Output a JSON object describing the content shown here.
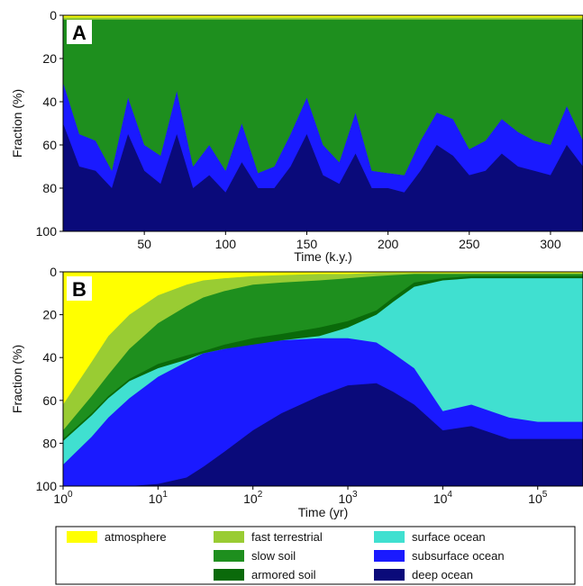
{
  "colors": {
    "atmosphere": "#ffff00",
    "fast_terrestrial": "#99cc33",
    "slow_soil": "#1e8f1e",
    "armored_soil": "#0a6a0a",
    "surface_ocean": "#40e0d0",
    "subsurface_ocean": "#1a1aff",
    "deep_ocean": "#0a0a7a"
  },
  "legend": {
    "items": [
      {
        "key": "atmosphere",
        "label": "atmosphere"
      },
      {
        "key": "fast_terrestrial",
        "label": "fast terrestrial"
      },
      {
        "key": "surface_ocean",
        "label": "surface ocean"
      },
      {
        "key": "slow_soil",
        "label": "slow soil"
      },
      {
        "key": "subsurface_ocean",
        "label": "subsurface ocean"
      },
      {
        "key": "armored_soil",
        "label": "armored soil"
      },
      {
        "key": "deep_ocean",
        "label": "deep ocean"
      }
    ]
  },
  "chart_data": [
    {
      "panel": "A",
      "type": "area",
      "stacked": true,
      "xlabel": "Time (k.y.)",
      "ylabel": "Fraction (%)",
      "xlim": [
        0,
        320
      ],
      "ylim": [
        100,
        0
      ],
      "y_inverted": true,
      "xticks": [
        50,
        100,
        150,
        200,
        250,
        300
      ],
      "yticks": [
        0,
        20,
        40,
        60,
        80,
        100
      ],
      "x": [
        0,
        10,
        20,
        30,
        40,
        50,
        60,
        70,
        80,
        90,
        100,
        110,
        120,
        130,
        140,
        150,
        160,
        170,
        180,
        190,
        200,
        210,
        220,
        230,
        240,
        250,
        260,
        270,
        280,
        290,
        300,
        310,
        320
      ],
      "boundaries": {
        "atmosphere": [
          1,
          1,
          1,
          1,
          1,
          1,
          1,
          1,
          1,
          1,
          1,
          1,
          1,
          1,
          1,
          1,
          1,
          1,
          1,
          1,
          1,
          1,
          1,
          1,
          1,
          1,
          1,
          1,
          1,
          1,
          1,
          1,
          1
        ],
        "fast_terrestrial": [
          2,
          2,
          2,
          2,
          2,
          2,
          2,
          2,
          2,
          2,
          2,
          2,
          2,
          2,
          2,
          2,
          2,
          2,
          2,
          2,
          2,
          2,
          2,
          2,
          2,
          2,
          2,
          2,
          2,
          2,
          2,
          2,
          2
        ],
        "slow_soil": [
          31,
          55,
          58,
          72,
          38,
          60,
          65,
          35,
          70,
          60,
          72,
          50,
          73,
          70,
          55,
          38,
          60,
          68,
          45,
          72,
          73,
          74,
          58,
          45,
          48,
          62,
          58,
          48,
          54,
          58,
          60,
          42,
          58
        ],
        "armored_soil": [
          31,
          55,
          58,
          72,
          38,
          60,
          65,
          35,
          70,
          60,
          72,
          50,
          73,
          70,
          55,
          38,
          60,
          68,
          45,
          72,
          73,
          74,
          58,
          45,
          48,
          62,
          58,
          48,
          54,
          58,
          60,
          42,
          58
        ],
        "surface_ocean": [
          31,
          55,
          58,
          72,
          38,
          60,
          65,
          35,
          70,
          60,
          72,
          50,
          73,
          70,
          55,
          38,
          60,
          68,
          45,
          72,
          73,
          74,
          58,
          45,
          48,
          62,
          58,
          48,
          54,
          58,
          60,
          42,
          58
        ],
        "subsurface_ocean": [
          50,
          70,
          72,
          80,
          55,
          72,
          78,
          55,
          80,
          74,
          82,
          68,
          80,
          80,
          70,
          55,
          74,
          78,
          64,
          80,
          80,
          82,
          72,
          60,
          65,
          74,
          72,
          64,
          70,
          72,
          74,
          60,
          70
        ]
      }
    },
    {
      "panel": "B",
      "type": "area",
      "stacked": true,
      "xlabel": "Time (yr)",
      "ylabel": "Fraction (%)",
      "xscale": "log",
      "xlim": [
        1,
        300000
      ],
      "ylim": [
        100,
        0
      ],
      "y_inverted": true,
      "xticks": [
        1,
        10,
        100,
        1000,
        10000,
        100000
      ],
      "xtick_labels": [
        [
          "10",
          "0"
        ],
        [
          "10",
          "1"
        ],
        [
          "10",
          "2"
        ],
        [
          "10",
          "3"
        ],
        [
          "10",
          "4"
        ],
        [
          "10",
          "5"
        ]
      ],
      "yticks": [
        0,
        20,
        40,
        60,
        80,
        100
      ],
      "x": [
        1,
        2,
        3,
        5,
        10,
        20,
        30,
        50,
        100,
        200,
        500,
        1000,
        2000,
        3000,
        5000,
        10000,
        20000,
        50000,
        100000,
        300000
      ],
      "boundaries": {
        "atmosphere": [
          62,
          42,
          30,
          20,
          11,
          6,
          4,
          3,
          2,
          1.5,
          1,
          1,
          0.5,
          0.5,
          0.5,
          0.5,
          0.5,
          0.5,
          0.5,
          0.5
        ],
        "fast_terrestrial": [
          74,
          58,
          48,
          36,
          24,
          16,
          12,
          9,
          6,
          5,
          4,
          3,
          2,
          1.5,
          1,
          1,
          1,
          1,
          1,
          1
        ],
        "slow_soil": [
          78,
          66,
          58,
          50,
          43,
          39,
          37,
          34,
          31,
          29,
          26,
          23,
          18,
          12,
          5,
          3,
          2,
          2,
          2,
          2
        ],
        "armored_soil": [
          79,
          67,
          59,
          51,
          45,
          41,
          38,
          36,
          34,
          32,
          30,
          26,
          20,
          14,
          7,
          4,
          3,
          3,
          3,
          3
        ],
        "surface_ocean": [
          90,
          77,
          68,
          59,
          49,
          42,
          38,
          36,
          33,
          32,
          31,
          31,
          33,
          38,
          45,
          65,
          62,
          68,
          70,
          70
        ],
        "subsurface_ocean": [
          100,
          100,
          100,
          100,
          99,
          96,
          91,
          84,
          74,
          66,
          58,
          53,
          52,
          56,
          62,
          74,
          72,
          78,
          78,
          78
        ]
      }
    }
  ]
}
